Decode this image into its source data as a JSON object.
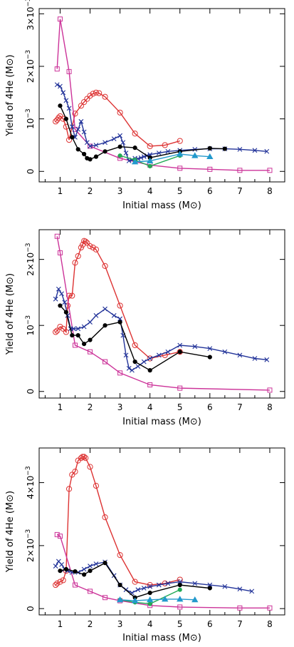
{
  "chart_data": [
    {
      "type": "line",
      "xlabel": "Initial mass (M⊙)",
      "ylabel": "Yield of 4He (M⊙)",
      "xlim": [
        0.3,
        8.5
      ],
      "ylim": [
        -0.0002,
        0.0031
      ],
      "xticks": [
        1,
        2,
        3,
        4,
        5,
        6,
        7,
        8
      ],
      "xtick_labels": [
        "1",
        "2",
        "3",
        "4",
        "5",
        "6",
        "7",
        "8"
      ],
      "yticks": [
        0,
        0.001,
        0.002,
        0.003
      ],
      "ytick_labels": [
        "0",
        "10−3",
        "2×10−3",
        "3×10−3"
      ],
      "series": [
        {
          "color": "#dd3333",
          "marker": "circle",
          "x": [
            0.85,
            0.9,
            0.95,
            1.0,
            1.1,
            1.2,
            1.3,
            1.5,
            1.7,
            1.8,
            1.9,
            2.0,
            2.1,
            2.2,
            2.3,
            2.5,
            3.0,
            3.5,
            4.0,
            4.5,
            5.0
          ],
          "y": [
            0.00095,
            0.00098,
            0.00102,
            0.00105,
            0.001,
            0.00085,
            0.0006,
            0.0011,
            0.00125,
            0.00132,
            0.00138,
            0.00144,
            0.00148,
            0.0015,
            0.00149,
            0.00142,
            0.00112,
            0.00072,
            0.00048,
            0.0005,
            0.00058
          ]
        },
        {
          "color": "#cc3399",
          "marker": "square",
          "x": [
            0.9,
            1.0,
            1.3,
            1.5,
            2.0,
            3.0,
            4.0,
            5.0,
            6.0,
            7.0,
            8.0
          ],
          "y": [
            0.00195,
            0.0029,
            0.0019,
            0.0008,
            0.00048,
            0.00025,
            0.00012,
            6e-05,
            4e-05,
            2e-05,
            2e-05
          ]
        },
        {
          "color": "#223399",
          "marker": "x",
          "x": [
            0.9,
            1.0,
            1.1,
            1.2,
            1.3,
            1.4,
            1.5,
            1.6,
            1.7,
            1.8,
            1.9,
            2.0,
            2.2,
            2.5,
            2.8,
            3.0,
            3.1,
            3.2,
            3.3,
            3.4,
            3.5,
            3.6,
            3.7,
            3.8,
            3.9,
            4.0,
            4.3,
            4.6,
            5.0,
            5.5,
            6.0,
            6.5,
            7.0,
            7.5,
            7.9
          ],
          "y": [
            0.00165,
            0.00162,
            0.0015,
            0.00135,
            0.0012,
            0.00085,
            0.00065,
            0.0008,
            0.00095,
            0.00075,
            0.00055,
            0.00048,
            0.0005,
            0.00055,
            0.00062,
            0.00068,
            0.00055,
            0.00035,
            0.0002,
            0.00022,
            0.00025,
            0.00024,
            0.00026,
            0.00028,
            0.0003,
            0.00032,
            0.00035,
            0.00038,
            0.0004,
            0.00042,
            0.00043,
            0.00043,
            0.00042,
            0.0004,
            0.00038
          ]
        },
        {
          "color": "#000000",
          "marker": "dot",
          "x": [
            1.0,
            1.2,
            1.4,
            1.6,
            1.8,
            1.9,
            2.0,
            2.2,
            2.5,
            3.0,
            3.5,
            4.0,
            5.0,
            6.0,
            6.5
          ],
          "y": [
            0.00125,
            0.001,
            0.00065,
            0.00042,
            0.00033,
            0.00025,
            0.00023,
            0.00028,
            0.00038,
            0.00047,
            0.00045,
            0.00026,
            0.00038,
            0.00044,
            0.00043
          ]
        },
        {
          "color": "#22aa55",
          "marker": "dot",
          "x": [
            3.0,
            3.5,
            4.0,
            5.0
          ],
          "y": [
            0.0003,
            0.00022,
            0.0001,
            0.0003
          ]
        },
        {
          "color": "#2299cc",
          "marker": "triangle",
          "x": [
            3.5,
            4.0,
            5.0,
            5.5,
            6.0
          ],
          "y": [
            0.00018,
            0.0002,
            0.00033,
            0.0003,
            0.00028
          ]
        }
      ]
    },
    {
      "type": "line",
      "xlabel": "Initial mass (M⊙)",
      "ylabel": "Yield of 4He (M⊙)",
      "xlim": [
        0.3,
        8.5
      ],
      "ylim": [
        -0.0001,
        0.00245
      ],
      "xticks": [
        1,
        2,
        3,
        4,
        5,
        6,
        7,
        8
      ],
      "xtick_labels": [
        "1",
        "2",
        "3",
        "4",
        "5",
        "6",
        "7",
        "8"
      ],
      "yticks": [
        0,
        0.001,
        0.002
      ],
      "ytick_labels": [
        "0",
        "10−3",
        "2×10−3"
      ],
      "series": [
        {
          "color": "#dd3333",
          "marker": "circle",
          "x": [
            0.85,
            0.9,
            1.0,
            1.1,
            1.2,
            1.25,
            1.3,
            1.4,
            1.5,
            1.6,
            1.7,
            1.75,
            1.8,
            1.85,
            1.9,
            2.0,
            2.1,
            2.2,
            2.5,
            3.0,
            3.5,
            4.0,
            4.5,
            5.0
          ],
          "y": [
            0.0009,
            0.00092,
            0.00098,
            0.00095,
            0.0009,
            0.0013,
            0.00145,
            0.00145,
            0.00195,
            0.00205,
            0.00218,
            0.00222,
            0.00228,
            0.00227,
            0.00225,
            0.0022,
            0.00218,
            0.00215,
            0.0019,
            0.0013,
            0.0007,
            0.0005,
            0.00055,
            0.0006
          ]
        },
        {
          "color": "#cc3399",
          "marker": "square",
          "x": [
            0.9,
            1.0,
            1.5,
            2.0,
            2.5,
            3.0,
            4.0,
            5.0,
            8.0
          ],
          "y": [
            0.00235,
            0.0021,
            0.0007,
            0.0006,
            0.00045,
            0.00028,
            0.0001,
            5e-05,
            2e-05
          ]
        },
        {
          "color": "#223399",
          "marker": "x",
          "x": [
            0.85,
            0.95,
            1.05,
            1.15,
            1.25,
            1.35,
            1.45,
            1.6,
            1.8,
            2.0,
            2.2,
            2.5,
            2.8,
            3.0,
            3.1,
            3.2,
            3.3,
            3.4,
            3.6,
            3.8,
            4.0,
            4.3,
            4.6,
            5.0,
            5.5,
            6.0,
            6.5,
            7.0,
            7.5,
            7.9
          ],
          "y": [
            0.0014,
            0.00155,
            0.00148,
            0.00135,
            0.00115,
            0.00095,
            0.00095,
            0.00095,
            0.00098,
            0.00105,
            0.00115,
            0.00125,
            0.00115,
            0.0011,
            0.00085,
            0.00055,
            0.00035,
            0.00032,
            0.00038,
            0.00045,
            0.0005,
            0.00055,
            0.0006,
            0.0007,
            0.00068,
            0.00065,
            0.0006,
            0.00055,
            0.0005,
            0.00048
          ]
        },
        {
          "color": "#000000",
          "marker": "dot",
          "x": [
            1.0,
            1.2,
            1.4,
            1.6,
            1.8,
            2.0,
            2.5,
            3.0,
            3.5,
            4.0,
            5.0,
            6.0
          ],
          "y": [
            0.0013,
            0.0012,
            0.00085,
            0.00085,
            0.00072,
            0.00078,
            0.001,
            0.00105,
            0.00045,
            0.00032,
            0.0006,
            0.00052
          ]
        }
      ]
    },
    {
      "type": "line",
      "xlabel": "Initial mass (M⊙)",
      "ylabel": "Yield of 4He (M⊙)",
      "xlim": [
        0.3,
        8.5
      ],
      "ylim": [
        -0.0002,
        0.0051
      ],
      "xticks": [
        1,
        2,
        3,
        4,
        5,
        6,
        7,
        8
      ],
      "xtick_labels": [
        "1",
        "2",
        "3",
        "4",
        "5",
        "6",
        "7",
        "8"
      ],
      "yticks": [
        0,
        0.002,
        0.004
      ],
      "ytick_labels": [
        "0",
        "2×10−3",
        "4×10−3"
      ],
      "series": [
        {
          "color": "#dd3333",
          "marker": "circle",
          "x": [
            0.85,
            0.9,
            1.0,
            1.1,
            1.2,
            1.3,
            1.4,
            1.5,
            1.6,
            1.7,
            1.75,
            1.8,
            1.85,
            2.0,
            2.2,
            2.5,
            3.0,
            3.5,
            4.0,
            4.5,
            5.0
          ],
          "y": [
            0.00075,
            0.0008,
            0.00085,
            0.0009,
            0.0012,
            0.0038,
            0.00425,
            0.00435,
            0.0047,
            0.00478,
            0.00482,
            0.00482,
            0.00478,
            0.0045,
            0.0039,
            0.0029,
            0.0017,
            0.00085,
            0.00075,
            0.0008,
            0.00092
          ]
        },
        {
          "color": "#cc3399",
          "marker": "square",
          "x": [
            0.9,
            1.0,
            1.5,
            2.0,
            2.5,
            3.0,
            4.0,
            5.0,
            7.0,
            8.0
          ],
          "y": [
            0.00235,
            0.0023,
            0.00075,
            0.00055,
            0.00035,
            0.00025,
            0.0001,
            5e-05,
            2e-05,
            2e-05
          ]
        },
        {
          "color": "#223399",
          "marker": "x",
          "x": [
            0.85,
            0.95,
            1.05,
            1.15,
            1.25,
            1.4,
            1.6,
            1.8,
            2.0,
            2.2,
            2.5,
            2.8,
            3.0,
            3.2,
            3.4,
            3.6,
            3.8,
            4.0,
            4.3,
            4.6,
            5.0,
            5.5,
            6.0,
            6.5,
            7.0,
            7.4
          ],
          "y": [
            0.00135,
            0.0015,
            0.0014,
            0.00125,
            0.0012,
            0.00115,
            0.00115,
            0.00125,
            0.00135,
            0.00142,
            0.00148,
            0.00105,
            0.00075,
            0.0006,
            0.0005,
            0.0006,
            0.00065,
            0.0007,
            0.00075,
            0.0008,
            0.00085,
            0.0008,
            0.00075,
            0.0007,
            0.00062,
            0.00055
          ]
        },
        {
          "color": "#000000",
          "marker": "dot",
          "x": [
            1.0,
            1.2,
            1.5,
            1.8,
            2.0,
            2.5,
            3.0,
            3.5,
            4.0,
            5.0,
            6.0
          ],
          "y": [
            0.0012,
            0.00125,
            0.00118,
            0.00108,
            0.0012,
            0.00145,
            0.00075,
            0.00035,
            0.0005,
            0.00075,
            0.00065
          ]
        },
        {
          "color": "#22aa55",
          "marker": "dot",
          "x": [
            3.0,
            3.5,
            4.0,
            5.0
          ],
          "y": [
            0.00028,
            0.0002,
            0.00015,
            0.0006
          ]
        },
        {
          "color": "#2299cc",
          "marker": "triangle",
          "x": [
            3.0,
            3.5,
            4.0,
            4.5,
            5.0,
            5.5
          ],
          "y": [
            0.00028,
            0.00025,
            0.00028,
            0.0003,
            0.0003,
            0.00028
          ]
        }
      ]
    }
  ]
}
